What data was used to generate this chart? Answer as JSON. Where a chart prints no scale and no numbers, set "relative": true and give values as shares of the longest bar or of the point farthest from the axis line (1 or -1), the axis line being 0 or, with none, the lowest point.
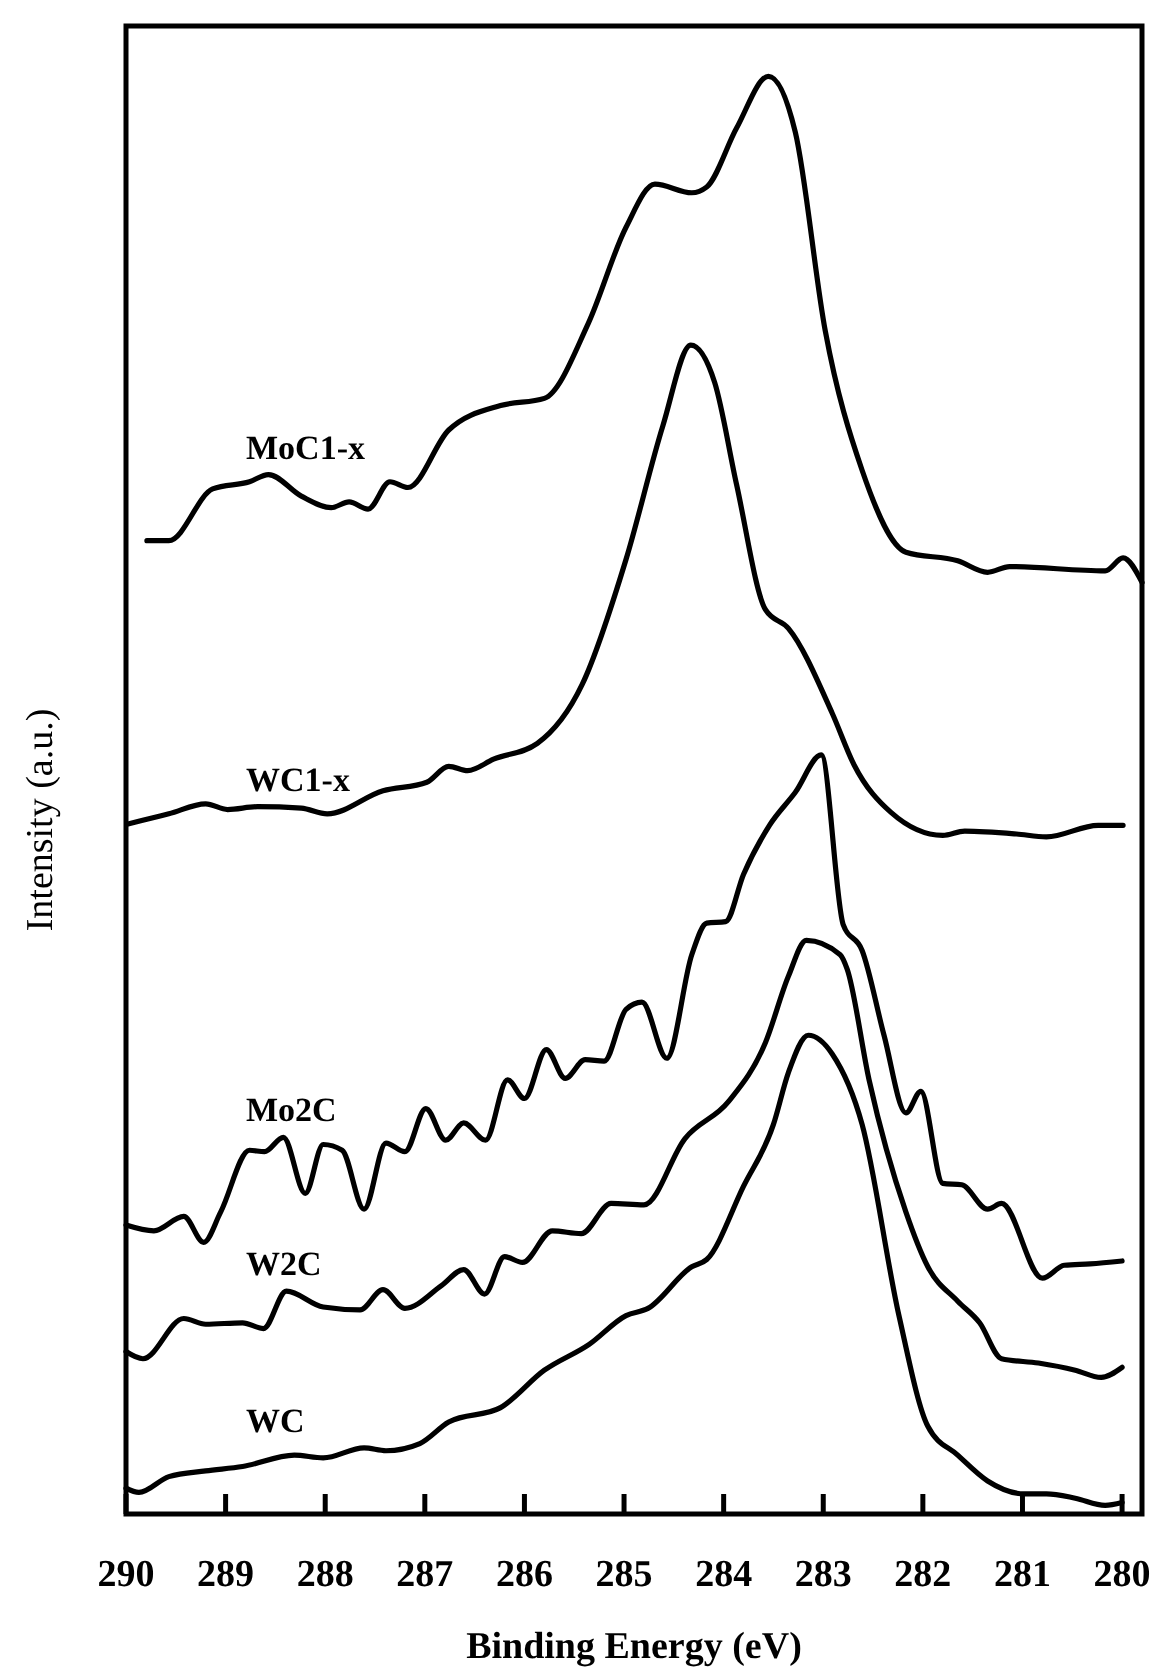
{
  "chart_data": {
    "type": "line",
    "relative": true,
    "xlabel": "Binding Energy (eV)",
    "ylabel": "Intensity (a.u.)",
    "xlim": [
      290,
      279.8
    ],
    "xticks": [
      290,
      289,
      288,
      287,
      286,
      285,
      284,
      283,
      282,
      281,
      280
    ],
    "series": [
      {
        "name": "MoC1-x",
        "color": "#000000",
        "x": [
          289.79,
          289.57,
          289.13,
          288.76,
          288.57,
          288.24,
          287.94,
          287.76,
          287.57,
          287.35,
          287.17,
          286.76,
          286.24,
          285.8,
          285.36,
          284.98,
          284.69,
          284.32,
          284.17,
          283.87,
          283.55,
          283.28,
          282.98,
          282.61,
          282.17,
          281.65,
          281.35,
          281.13,
          280.17,
          279.99,
          279.8
        ],
        "values": [
          0.677,
          0.677,
          0.713,
          0.718,
          0.723,
          0.708,
          0.7,
          0.704,
          0.699,
          0.718,
          0.714,
          0.754,
          0.771,
          0.776,
          0.828,
          0.895,
          0.925,
          0.919,
          0.923,
          0.964,
          1,
          0.961,
          0.823,
          0.726,
          0.669,
          0.663,
          0.655,
          0.659,
          0.656,
          0.665,
          0.648
        ]
      },
      {
        "name": "WC1-x",
        "color": "#000000",
        "x": [
          289.98,
          289.57,
          289.2,
          288.98,
          288.68,
          288.24,
          287.98,
          287.42,
          286.98,
          286.76,
          286.57,
          286.31,
          285.87,
          285.42,
          284.98,
          284.61,
          284.33,
          284.09,
          283.87,
          283.58,
          283.35,
          282.91,
          282.69,
          282.32,
          281.8,
          281.58,
          281.06,
          280.76,
          280.24,
          279.99
        ],
        "values": [
          0.48,
          0.487,
          0.494,
          0.49,
          0.492,
          0.491,
          0.487,
          0.503,
          0.509,
          0.52,
          0.517,
          0.525,
          0.536,
          0.577,
          0.664,
          0.757,
          0.813,
          0.787,
          0.716,
          0.629,
          0.616,
          0.557,
          0.521,
          0.488,
          0.472,
          0.475,
          0.473,
          0.471,
          0.479,
          0.479
        ]
      },
      {
        "name": "Mo2C",
        "color": "#000000",
        "x": [
          290,
          289.72,
          289.42,
          289.22,
          289.05,
          288.76,
          288.61,
          288.42,
          288.2,
          288.02,
          287.83,
          287.61,
          287.39,
          287.2,
          286.99,
          286.79,
          286.61,
          286.39,
          286.17,
          286,
          285.78,
          285.59,
          285.39,
          285.2,
          284.98,
          284.82,
          284.57,
          284.32,
          284.17,
          283.98,
          283.8,
          283.54,
          283.28,
          283.02,
          282.8,
          282.61,
          282.39,
          282.17,
          282.02,
          281.8,
          281.61,
          281.35,
          281.21,
          280.8,
          280.58,
          280.32,
          280
        ],
        "values": [
          0.201,
          0.197,
          0.207,
          0.189,
          0.21,
          0.253,
          0.252,
          0.262,
          0.223,
          0.257,
          0.253,
          0.212,
          0.258,
          0.252,
          0.282,
          0.26,
          0.272,
          0.26,
          0.302,
          0.289,
          0.323,
          0.303,
          0.316,
          0.315,
          0.351,
          0.356,
          0.317,
          0.389,
          0.411,
          0.412,
          0.445,
          0.479,
          0.502,
          0.528,
          0.41,
          0.392,
          0.333,
          0.279,
          0.294,
          0.23,
          0.229,
          0.212,
          0.216,
          0.164,
          0.173,
          0.174,
          0.176
        ]
      },
      {
        "name": "W2C",
        "color": "#000000",
        "x": [
          290,
          289.83,
          289.42,
          289.2,
          288.83,
          288.62,
          288.39,
          288.02,
          287.65,
          287.42,
          287.2,
          286.83,
          286.61,
          286.4,
          286.2,
          286.02,
          285.72,
          285.43,
          285.13,
          284.8,
          284.39,
          283.95,
          283.58,
          283.35,
          283.17,
          282.83,
          282.76,
          282.54,
          282.17,
          281.95,
          281.65,
          281.43,
          281.21,
          280.84,
          280.47,
          280.21,
          280
        ],
        "values": [
          0.113,
          0.108,
          0.136,
          0.132,
          0.133,
          0.129,
          0.155,
          0.144,
          0.142,
          0.156,
          0.143,
          0.159,
          0.17,
          0.153,
          0.179,
          0.175,
          0.197,
          0.195,
          0.216,
          0.215,
          0.261,
          0.287,
          0.328,
          0.374,
          0.399,
          0.389,
          0.379,
          0.302,
          0.21,
          0.172,
          0.148,
          0.133,
          0.108,
          0.105,
          0.1,
          0.095,
          0.102
        ]
      },
      {
        "name": "WC",
        "color": "#000000",
        "x": [
          290,
          289.87,
          289.57,
          289.2,
          288.83,
          288.31,
          288.02,
          287.61,
          287.39,
          287.05,
          286.76,
          286.24,
          285.8,
          285.35,
          284.98,
          284.76,
          284.32,
          284.17,
          283.8,
          283.5,
          283.35,
          283.15,
          282.91,
          282.61,
          282.24,
          281.95,
          281.65,
          281.35,
          280.98,
          280.76,
          280.47,
          280.17,
          280
        ],
        "values": [
          0.018,
          0.015,
          0.026,
          0.03,
          0.033,
          0.041,
          0.039,
          0.046,
          0.044,
          0.049,
          0.064,
          0.074,
          0.1,
          0.118,
          0.138,
          0.143,
          0.172,
          0.177,
          0.228,
          0.271,
          0.307,
          0.333,
          0.32,
          0.271,
          0.138,
          0.061,
          0.041,
          0.023,
          0.014,
          0.014,
          0.011,
          0.006,
          0.008
        ]
      }
    ]
  }
}
